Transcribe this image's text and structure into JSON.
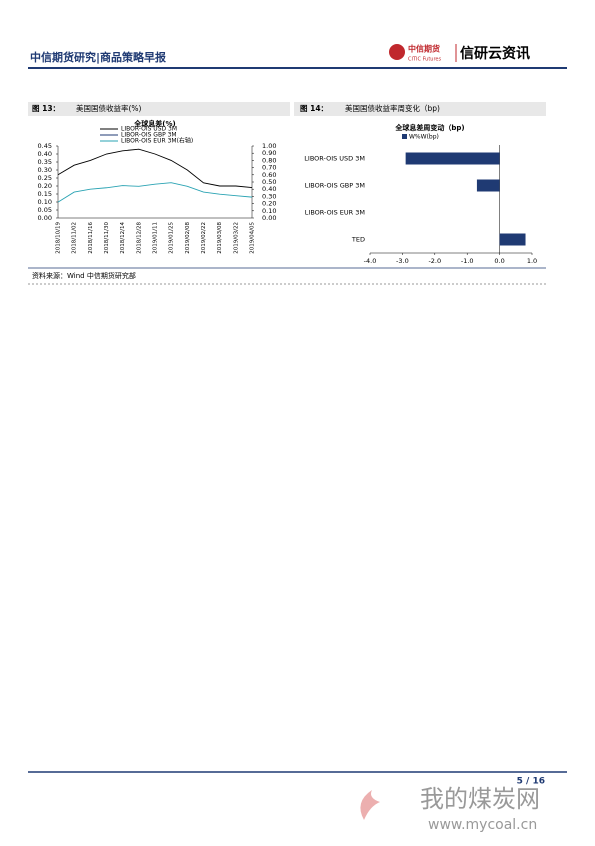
{
  "header": {
    "title": "中信期货研究|商品策略早报",
    "logo": "中信期货",
    "logo_en": "CITIC Futures",
    "brand": "信研云资讯"
  },
  "figures": [
    {
      "label": "图 13：",
      "title": "美国国债收益率(%)"
    },
    {
      "label": "图 14：",
      "title": "美国国债收益率周变化（bp)"
    }
  ],
  "chart_data": [
    {
      "type": "line",
      "title": "全球息差(%)",
      "categories": [
        "2018/10/19",
        "2018/11/02",
        "2018/11/16",
        "2018/11/30",
        "2018/12/14",
        "2018/12/28",
        "2019/01/11",
        "2019/01/25",
        "2019/02/08",
        "2019/02/22",
        "2019/03/08",
        "2019/03/22",
        "2019/04/05"
      ],
      "series": [
        {
          "name": "LIBOR-OIS USD 3M",
          "color": "#000000",
          "values": [
            0.27,
            0.33,
            0.36,
            0.4,
            0.42,
            0.43,
            0.4,
            0.36,
            0.3,
            0.22,
            0.2,
            0.2,
            0.19
          ]
        },
        {
          "name": "LIBOR-OIS GBP 3M",
          "color": "#1f3a73",
          "values": [
            null,
            null,
            null,
            null,
            null,
            null,
            null,
            null,
            null,
            null,
            null,
            null,
            null
          ]
        },
        {
          "name": "LIBOR-OIS EUR 3M(右轴)",
          "color": "#2aa3b3",
          "axis": "y2",
          "values": [
            0.22,
            0.36,
            0.4,
            0.42,
            0.45,
            0.44,
            0.47,
            0.49,
            0.44,
            0.36,
            0.33,
            0.31,
            0.29
          ]
        }
      ],
      "ylim": [
        0,
        0.45
      ],
      "yticks": [
        {
          "value": 0,
          "label": "0.00"
        },
        {
          "value": 0.05,
          "label": "0.05"
        },
        {
          "value": 0.1,
          "label": "0.10"
        },
        {
          "value": 0.15,
          "label": "0.15"
        },
        {
          "value": 0.2,
          "label": "0.20"
        },
        {
          "value": 0.25,
          "label": "0.25"
        },
        {
          "value": 0.3,
          "label": "0.30"
        },
        {
          "value": 0.35,
          "label": "0.35"
        },
        {
          "value": 0.4,
          "label": "0.40"
        },
        {
          "value": 0.45,
          "label": "0.45"
        }
      ],
      "y2lim": [
        0,
        1
      ],
      "y2ticks": [
        {
          "value": 0,
          "label": "0.00"
        },
        {
          "value": 0.1,
          "label": "0.10"
        },
        {
          "value": 0.2,
          "label": "0.20"
        },
        {
          "value": 0.3,
          "label": "0.30"
        },
        {
          "value": 0.4,
          "label": "0.40"
        },
        {
          "value": 0.5,
          "label": "0.50"
        },
        {
          "value": 0.6,
          "label": "0.60"
        },
        {
          "value": 0.7,
          "label": "0.70"
        },
        {
          "value": 0.8,
          "label": "0.80"
        },
        {
          "value": 0.9,
          "label": "0.90"
        },
        {
          "value": 1,
          "label": "1.00"
        }
      ]
    },
    {
      "type": "hbar",
      "title": "全球息差周变动（bp)",
      "categories": [
        "LIBOR-OIS USD 3M",
        "LIBOR-OIS GBP 3M",
        "LIBOR-OIS EUR 3M",
        "TED"
      ],
      "series": [
        {
          "name": "W%W(bp)",
          "color": "#1f3a73",
          "values": [
            -2.9,
            -0.7,
            0,
            0.8
          ]
        }
      ],
      "xlim": [
        -4,
        1
      ],
      "xticks": [
        {
          "value": -4,
          "label": "-4.0"
        },
        {
          "value": -3,
          "label": "-3.0"
        },
        {
          "value": -2,
          "label": "-2.0"
        },
        {
          "value": -1,
          "label": "-1.0"
        },
        {
          "value": 0,
          "label": "0.0"
        },
        {
          "value": 1,
          "label": "1.0"
        }
      ]
    }
  ],
  "source": "资料来源：Wind  中信期货研究部",
  "footer": {
    "page": "5 / 16"
  },
  "watermark": {
    "name": "我的煤炭网",
    "url": "www.mycoal.cn"
  }
}
